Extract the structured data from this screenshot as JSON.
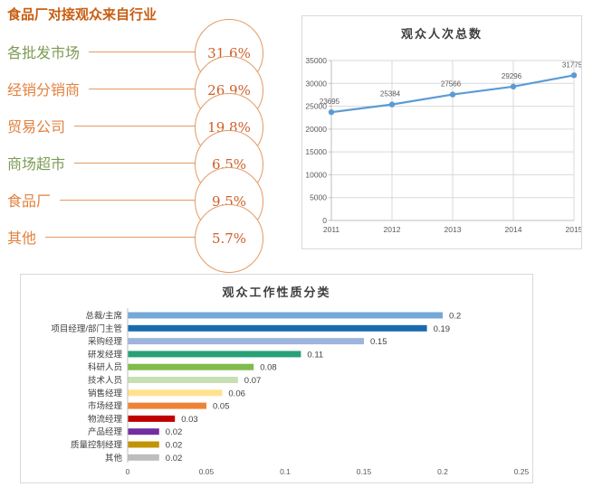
{
  "chart_data": [
    {
      "type": "labeled-circles",
      "title": "食品厂对接观众来自行业",
      "title_color": "#C85E12",
      "accent_color": "#E49A62",
      "value_color": "#CE5F2A",
      "categories": [
        "各批发市场",
        "经销分销商",
        "贸易公司",
        "商场超市",
        "食品厂",
        "其他"
      ],
      "values_percent": [
        31.6,
        26.9,
        19.8,
        6.5,
        9.5,
        5.7
      ],
      "value_labels": [
        "31.6%",
        "26.9%",
        "19.8%",
        "6.5%",
        "9.5%",
        "5.7%"
      ],
      "label_colors": [
        "#7D9B54",
        "#E2823E",
        "#E2823E",
        "#7D9B54",
        "#E2823E",
        "#E2823E"
      ]
    },
    {
      "type": "line",
      "title": "观众人次总数",
      "x": [
        2011,
        2012,
        2013,
        2014,
        2015
      ],
      "values": [
        23695,
        25384,
        27566,
        29296,
        31775
      ],
      "ylim": [
        0,
        35000
      ],
      "ytick_step": 5000,
      "grid": true,
      "legend": "none",
      "line_color": "#5B9BD5",
      "grid_color": "#D9D9D9",
      "axis_color": "#BFBFBF"
    },
    {
      "type": "bar",
      "orientation": "horizontal",
      "title": "观众工作性质分类",
      "categories": [
        "总裁/主席",
        "项目经理/部门主管",
        "采购经理",
        "研发经理",
        "科研人员",
        "技术人员",
        "销售经理",
        "市场经理",
        "物流经理",
        "产品经理",
        "质量控制经理",
        "其他"
      ],
      "values": [
        0.2,
        0.19,
        0.15,
        0.11,
        0.08,
        0.07,
        0.06,
        0.05,
        0.03,
        0.02,
        0.02,
        0.02
      ],
      "bar_colors": [
        "#74A9D8",
        "#1A6BAE",
        "#9DB4DE",
        "#29A176",
        "#81BA4D",
        "#C7DFB2",
        "#FFE18E",
        "#EE8337",
        "#C00000",
        "#7030A0",
        "#C19408",
        "#BDBDBD"
      ],
      "xlim": [
        0,
        0.25
      ],
      "xticks": [
        0,
        0.05,
        0.1,
        0.15,
        0.2,
        0.25
      ],
      "legend": "none",
      "axis_color": "#BFBFBF"
    }
  ]
}
